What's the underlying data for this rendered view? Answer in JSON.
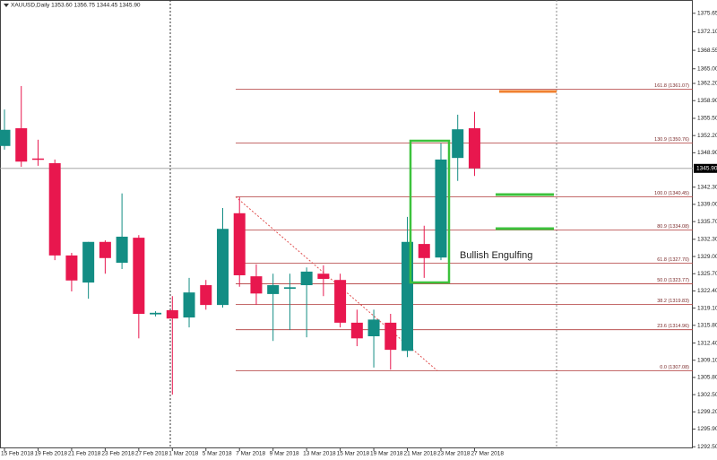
{
  "chart_data": {
    "type": "candlestick",
    "title": "XAUUSD,Daily  1353.60 1356.75 1344.45 1345.90",
    "categories": [
      "15 Feb 2018",
      null,
      "19 Feb 2018",
      null,
      "21 Feb 2018",
      null,
      "23 Feb 2018",
      null,
      "27 Feb 2018",
      null,
      "1 Mar 2018",
      null,
      "5 Mar 2018",
      null,
      "7 Mar 2018",
      null,
      "9 Mar 2018",
      null,
      "13 Mar 2018",
      null,
      "15 Mar 2018",
      null,
      "19 Mar 2018",
      null,
      "21 Mar 2018",
      null,
      "23 Mar 2018",
      null,
      "27 Mar 2018"
    ],
    "open": [
      1350.2,
      1353.6,
      1347.8,
      1346.9,
      1329.2,
      1324.0,
      1331.8,
      1327.8,
      1332.6,
      1317.9,
      1318.7,
      1317.3,
      1323.5,
      1319.7,
      1337.3,
      1325.2,
      1321.8,
      1322.8,
      1323.5,
      1325.7,
      1324.5,
      1316.3,
      1313.7,
      1316.3,
      1310.9,
      1331.4,
      1328.8,
      1347.9,
      1353.6
    ],
    "high": [
      1357.2,
      1361.7,
      1351.4,
      1347.6,
      1329.7,
      1331.8,
      1332.1,
      1341.1,
      1333.1,
      1318.5,
      1321.4,
      1324.9,
      1324.5,
      1338.3,
      1340.4,
      1327.5,
      1325.7,
      1325.7,
      1326.9,
      1327.3,
      1325.7,
      1318.8,
      1318.8,
      1318.0,
      1336.6,
      1334.9,
      1350.7,
      1356.2,
      1356.75
    ],
    "low": [
      1349.5,
      1346.2,
      1346.4,
      1328.3,
      1322.3,
      1320.9,
      1325.7,
      1326.6,
      1313.3,
      1317.5,
      1302.5,
      1315.4,
      1318.8,
      1319.2,
      1323.2,
      1319.7,
      1312.8,
      1314.9,
      1313.5,
      1321.4,
      1315.4,
      1311.8,
      1307.7,
      1307.3,
      1309.7,
      1324.9,
      1328.3,
      1343.5,
      1344.45
    ],
    "close": [
      1353.3,
      1347.2,
      1347.7,
      1329.2,
      1324.4,
      1331.8,
      1328.7,
      1332.8,
      1318.0,
      1318.2,
      1317.1,
      1322.1,
      1319.7,
      1334.3,
      1325.4,
      1321.9,
      1323.5,
      1323.1,
      1326.1,
      1324.7,
      1316.3,
      1313.3,
      1316.9,
      1311.1,
      1331.8,
      1328.7,
      1347.6,
      1353.4,
      1345.9
    ],
    "up_color": "#138d84",
    "down_color": "#e8174e",
    "ylim": [
      1292.2,
      1378.2
    ],
    "yticks": [
      1375.65,
      {
        "value": 1372.1,
        "label": "1372.10"
      },
      1368.55,
      {
        "value": 1365,
        "label": "1365.00"
      },
      {
        "value": 1362.2,
        "label": "1362.20"
      },
      {
        "value": 1358.9,
        "label": "1358.90"
      },
      {
        "value": 1355.5,
        "label": "1355.50"
      },
      {
        "value": 1352.2,
        "label": "1352.20"
      },
      {
        "value": 1348.9,
        "label": "1348.90"
      },
      {
        "value": 1342.3,
        "label": "1342.30"
      },
      {
        "value": 1339,
        "label": "1339.00"
      },
      {
        "value": 1335.7,
        "label": "1335.70"
      },
      {
        "value": 1332.3,
        "label": "1332.30"
      },
      {
        "value": 1329,
        "label": "1329.00"
      },
      {
        "value": 1325.7,
        "label": "1325.70"
      },
      {
        "value": 1322.4,
        "label": "1322.40"
      },
      {
        "value": 1319.1,
        "label": "1319.10"
      },
      {
        "value": 1315.8,
        "label": "1315.80"
      },
      {
        "value": 1312.4,
        "label": "1312.40"
      },
      {
        "value": 1309.1,
        "label": "1309.10"
      },
      {
        "value": 1305.8,
        "label": "1305.80"
      },
      {
        "value": 1302.5,
        "label": "1302.50"
      },
      {
        "value": 1299.2,
        "label": "1299.20"
      },
      {
        "value": 1295.9,
        "label": "1295.90"
      },
      {
        "value": 1292.5,
        "label": "1292.50"
      }
    ],
    "current_price": {
      "value": 1345.9,
      "label": "1345.90"
    },
    "fib_levels": [
      {
        "value": 1361.07,
        "label": "161.8 (1361.07)"
      },
      {
        "value": 1350.76,
        "label": "130.9 (1350.76)"
      },
      {
        "value": 1340.45,
        "label": "100.0 (1340.45)"
      },
      {
        "value": 1334.08,
        "label": "80.9 (1334.08)"
      },
      {
        "value": 1327.7,
        "label": "61.8 (1327.70)"
      },
      {
        "value": 1323.77,
        "label": "50.0 (1323.77)"
      },
      {
        "value": 1319.83,
        "label": "38.2 (1319.83)"
      },
      {
        "value": 1314.96,
        "label": "23.6 (1314.96)"
      },
      {
        "value": 1307.08,
        "label": "0.0 (1307.08)"
      }
    ],
    "fib_color": "#b03a3a",
    "annotation": "Bullish Engulfing"
  }
}
